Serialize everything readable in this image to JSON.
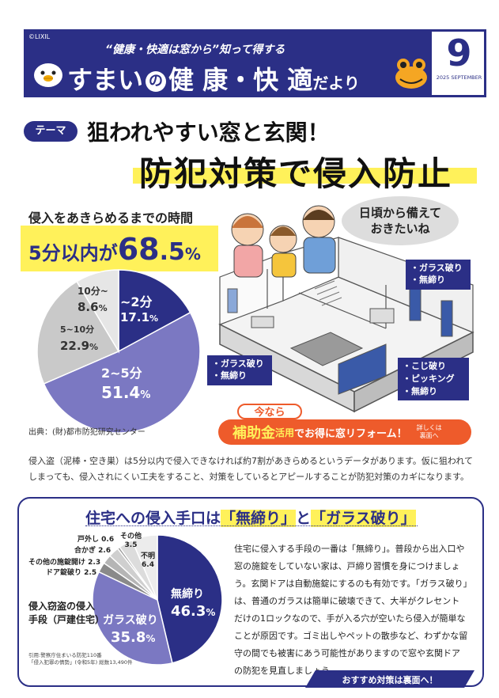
{
  "header": {
    "copyright": "©LIXIL",
    "tagline": "“健康・快適は窓から”知って得する",
    "title_main": "すまい",
    "title_no": "の",
    "title_rest": "健 康・快 適",
    "title_tail": "だより",
    "issue_number": "9",
    "issue_date": "2025 SEPTEMBER"
  },
  "theme": {
    "badge": "テーマ",
    "subtitle": "狙われやすい窓と玄関！",
    "title": "防犯対策で侵入防止"
  },
  "time_chart": {
    "heading": "侵入をあきらめるまでの時間",
    "highlight_prefix": "5分以内が",
    "highlight_big": "68",
    "highlight_dot": ".",
    "highlight_small": "5",
    "highlight_pct": "%",
    "source": "出典：(財)都市防犯研究センター"
  },
  "chart_data": [
    {
      "type": "pie",
      "title": "侵入をあきらめるまでの時間",
      "slices": [
        {
          "label": "~2分",
          "value": 17.1,
          "color": "#2b2f86"
        },
        {
          "label": "2~5分",
          "value": 51.4,
          "color": "#7b78c2"
        },
        {
          "label": "5~10分",
          "value": 22.9,
          "color": "#c9c9c9"
        },
        {
          "label": "10分~",
          "value": 8.6,
          "color": "#e6e6e6"
        }
      ]
    },
    {
      "type": "pie",
      "title": "侵入窃盗の侵入手段（戸建住宅）",
      "slices": [
        {
          "label": "無締り",
          "value": 46.3,
          "color": "#2b2f86"
        },
        {
          "label": "ガラス破り",
          "value": 35.8,
          "color": "#7b78c2"
        },
        {
          "label": "ドア錠破り",
          "value": 2.5,
          "color": "#8a8a8a"
        },
        {
          "label": "その他の施錠開け",
          "value": 2.3,
          "color": "#b5b5b5"
        },
        {
          "label": "合かぎ",
          "value": 2.6,
          "color": "#cfcfcf"
        },
        {
          "label": "戸外し",
          "value": 0.6,
          "color": "#9a9a9a"
        },
        {
          "label": "その他",
          "value": 3.5,
          "color": "#dcdcdc"
        },
        {
          "label": "不明",
          "value": 6.4,
          "color": "#ececec"
        }
      ]
    }
  ],
  "pie1_labels": {
    "s1_name": "~2分",
    "s1_val": "17.1",
    "s1_pct": "%",
    "s2_name": "2~5分",
    "s2_val": "51.4",
    "s2_pct": "%",
    "s3_name": "5~10分",
    "s3_val": "22.9",
    "s3_pct": "%",
    "s4_name": "10分~",
    "s4_val": "8.6",
    "s4_pct": "%"
  },
  "illustration": {
    "bubble": "日頃から備えて\nおきたいね",
    "callout_top_right": [
      "・ガラス破り",
      "・無締り"
    ],
    "callout_left": [
      "・ガラス破り",
      "・無締り"
    ],
    "callout_bottom_right": [
      "・こじ破り",
      "・ピッキング",
      "・無締り"
    ]
  },
  "promo": {
    "now": "今なら",
    "subsidy": "補助金",
    "use": "活用",
    "rest": "でお得に窓リフォーム！",
    "detail": "詳しくは\n裏面へ"
  },
  "intro_text": "侵入盗（泥棒・空き巣）は5分以内で侵入できなければ約7割があきらめるというデータがあります。仮に狙われてしまっても、侵入されにくい工夫をすること、対策をしているとアピールすることが防犯対策のカギになります。",
  "section2": {
    "title_pre": "住宅への侵入手口は",
    "term1": "「無締り」",
    "title_mid": "と",
    "term2": "「ガラス破り」",
    "chart_caption": "侵入窃盗の侵入\n手段（戸建住宅）",
    "citation": "引用:警察庁住まいる防犯110番\n「侵入犯罪の情勢」(令和5年) 総数13,490件",
    "body": "住宅に侵入する手段の一番は「無締り」。普段から出入口や窓の施錠をしていない家は、戸締り習慣を身につけましょう。玄関ドアは自動施錠にするのも有効です。「ガラス破り」は、普通のガラスは簡単に破壊できて、大半がクレセントだけの1ロックなので、手が入る穴が空いたら侵入が簡単なことが原因です。ゴミ出しやペットの散歩など、わずかな留守の間でも被害にあう可能性がありますので窓や玄関ドアの防犯を見直しましょう。",
    "cta": "おすすめ対策は裏面へ！"
  },
  "pie2_labels": {
    "l_mushimari": "無締り",
    "v_mushimari": "46.3",
    "p_mushimari": "%",
    "l_glass": "ガラス破り",
    "v_glass": "35.8",
    "p_glass": "%",
    "l_door": "ドア錠破り 2.5",
    "l_other_lock": "その他の施錠開け 2.3",
    "l_aikagi": "合かぎ 2.6",
    "l_tohazushi": "戸外し 0.6",
    "l_sonota": "その他",
    "v_sonota": "3.5",
    "l_fumei": "不明",
    "v_fumei": "6.4"
  }
}
